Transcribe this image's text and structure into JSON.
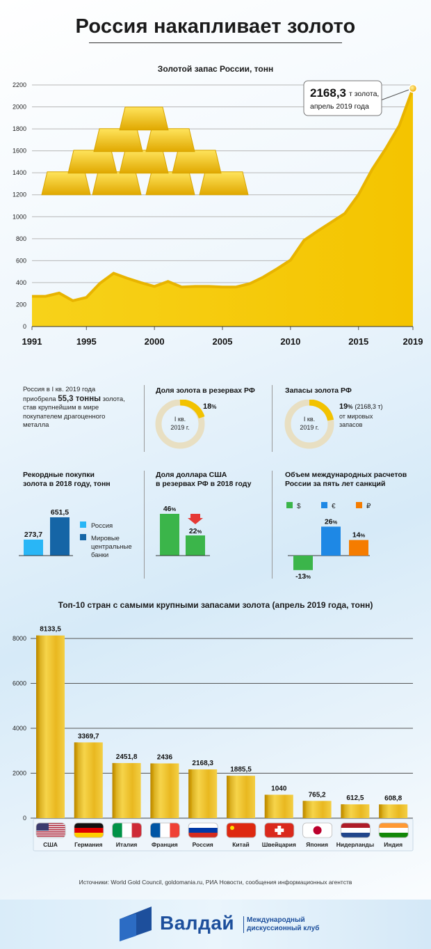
{
  "header": {
    "title": "Россия накапливает золото",
    "subtitle": "Золотой запас России, тонн"
  },
  "callout": {
    "value": "2168,3",
    "unit": "т золота,",
    "date": "апрель 2019 года"
  },
  "stats": {
    "purchase_text_1": "Россия в I кв. 2019 года",
    "purchase_text_2a": "приобрела ",
    "purchase_text_2b": "55,3 тонны",
    "purchase_text_2c": " золота,",
    "purchase_text_3": "став крупнейшим в мире",
    "purchase_text_4": "покупателем драгоценного",
    "purchase_text_5": "металла",
    "share_title": "Доля золота в резервах РФ",
    "share_value": "18",
    "share_center_1": "I кв.",
    "share_center_2": "2019 г.",
    "world_title": "Запасы золота РФ",
    "world_value": "19",
    "world_value_extra": "(2168,3 т)",
    "world_text_1": "от мировых",
    "world_text_2": "запасов",
    "world_center_1": "I кв.",
    "world_center_2": "2019 г.",
    "percent_sign": "%"
  },
  "purchases": {
    "title_1": "Рекордные покупки",
    "title_2": "золота в 2018 году, тонн",
    "russia_value": "273,7",
    "banks_value": "651,5",
    "legend_russia": "Россия",
    "legend_banks_1": "Мировые",
    "legend_banks_2": "центральные",
    "legend_banks_3": "банки",
    "colors": {
      "russia": "#29b6f6",
      "banks": "#1565a6"
    }
  },
  "dollar": {
    "title_1": "Доля доллара США",
    "title_2": "в резервах РФ в 2018 году",
    "before": "46",
    "after": "22",
    "color": "#3bb54a",
    "arrow_color": "#e53935"
  },
  "settlements": {
    "title_1": "Объем международных расчетов",
    "title_2": "России за пять лет санкций",
    "legend": [
      "$",
      "€",
      "₽"
    ],
    "values": [
      "-13",
      "26",
      "14"
    ],
    "colors": [
      "#3bb54a",
      "#1e88e5",
      "#f57c00"
    ]
  },
  "top10_title": "Топ-10 стран с самыми крупными запасами золота (апрель 2019 года, тонн)",
  "chart_data": [
    {
      "type": "area",
      "title": "Золотой запас России, тонн",
      "x": [
        1991,
        1992,
        1993,
        1994,
        1995,
        1996,
        1997,
        1998,
        1999,
        2000,
        2001,
        2002,
        2003,
        2004,
        2005,
        2006,
        2007,
        2008,
        2009,
        2010,
        2011,
        2012,
        2013,
        2014,
        2015,
        2016,
        2017,
        2018,
        2019
      ],
      "values": [
        275,
        275,
        305,
        235,
        265,
        395,
        485,
        440,
        400,
        365,
        410,
        360,
        365,
        365,
        360,
        360,
        390,
        450,
        525,
        605,
        785,
        870,
        950,
        1030,
        1200,
        1430,
        1620,
        1830,
        2168.3
      ],
      "xticks": [
        "1991",
        "1995",
        "2000",
        "2005",
        "2010",
        "2015",
        "2019"
      ],
      "yticks": [
        "0",
        "200",
        "400",
        "600",
        "800",
        "1000",
        "1200",
        "1400",
        "1600",
        "1800",
        "2000",
        "2200"
      ],
      "ylim": [
        0,
        2200
      ],
      "grid": true,
      "color": "#f2c200"
    },
    {
      "type": "bar",
      "title": "Топ-10 стран с самыми крупными запасами золота (апрель 2019 года, тонн)",
      "categories": [
        "США",
        "Германия",
        "Италия",
        "Франция",
        "Россия",
        "Китай",
        "Швейцария",
        "Япония",
        "Нидерланды",
        "Индия"
      ],
      "values": [
        8133.5,
        3369.7,
        2451.8,
        2436,
        2168.3,
        1885.5,
        1040,
        765.2,
        612.5,
        608.8
      ],
      "labels": [
        "8133,5",
        "3369,7",
        "2451,8",
        "2436",
        "2168,3",
        "1885,5",
        "1040",
        "765,2",
        "612,5",
        "608,8"
      ],
      "yticks": [
        "0",
        "2000",
        "4000",
        "6000",
        "8000"
      ],
      "ylim": [
        0,
        8000
      ],
      "grid": true
    }
  ],
  "source": "Источники: World Gold Council, goldomania.ru, РИА Новости, сообщения информационных агентств",
  "footer": {
    "brand": "Валдай",
    "club_1": "Международный",
    "club_2": "дискуссионный клуб"
  }
}
